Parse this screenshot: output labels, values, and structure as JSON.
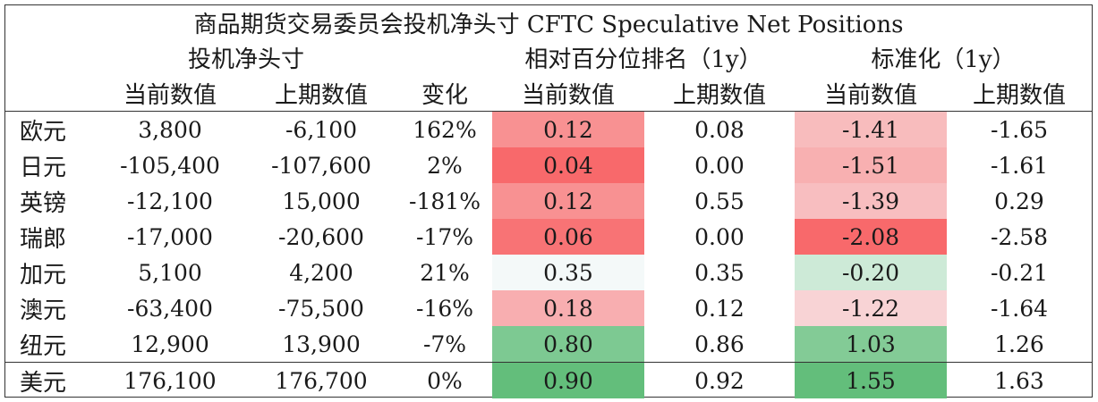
{
  "title": "商品期货交易委员会投机净头寸 CFTC Speculative Net Positions",
  "groups": {
    "net": "投机净头寸",
    "pct": "相对百分位排名（1y）",
    "std": "标准化（1y）"
  },
  "sub_headers": [
    "当前数值",
    "上期数值",
    "变化",
    "当前数值",
    "上期数值",
    "当前数值",
    "上期数值"
  ],
  "colors": {
    "heat_low": "#f8696b",
    "heat_high": "#63be7b",
    "heat_mid": "#f8fbfc"
  },
  "chart_data": {
    "type": "table",
    "title": "商品期货交易委员会投机净头寸 CFTC Speculative Net Positions",
    "columns": [
      "当前数值",
      "上期数值",
      "变化",
      "当前数值",
      "上期数值",
      "当前数值",
      "上期数值"
    ],
    "rows": [
      {
        "label": "欧元",
        "cur": "3,800",
        "prev": "-6,100",
        "chg": "162%",
        "pct_cur": "0.12",
        "pct_prev": "0.08",
        "std_cur": "-1.41",
        "std_prev": "-1.65",
        "pct_val": 0.12,
        "std_val": -1.41
      },
      {
        "label": "日元",
        "cur": "-105,400",
        "prev": "-107,600",
        "chg": "2%",
        "pct_cur": "0.04",
        "pct_prev": "0.00",
        "std_cur": "-1.51",
        "std_prev": "-1.61",
        "pct_val": 0.04,
        "std_val": -1.51
      },
      {
        "label": "英镑",
        "cur": "-12,100",
        "prev": "15,000",
        "chg": "-181%",
        "pct_cur": "0.12",
        "pct_prev": "0.55",
        "std_cur": "-1.39",
        "std_prev": "0.29",
        "pct_val": 0.12,
        "std_val": -1.39
      },
      {
        "label": "瑞郎",
        "cur": "-17,000",
        "prev": "-20,600",
        "chg": "-17%",
        "pct_cur": "0.06",
        "pct_prev": "0.00",
        "std_cur": "-2.08",
        "std_prev": "-2.58",
        "pct_val": 0.06,
        "std_val": -2.08
      },
      {
        "label": "加元",
        "cur": "5,100",
        "prev": "4,200",
        "chg": "21%",
        "pct_cur": "0.35",
        "pct_prev": "0.35",
        "std_cur": "-0.20",
        "std_prev": "-0.21",
        "pct_val": 0.35,
        "std_val": -0.2
      },
      {
        "label": "澳元",
        "cur": "-63,400",
        "prev": "-75,500",
        "chg": "-16%",
        "pct_cur": "0.18",
        "pct_prev": "0.12",
        "std_cur": "-1.22",
        "std_prev": "-1.64",
        "pct_val": 0.18,
        "std_val": -1.22
      },
      {
        "label": "纽元",
        "cur": "12,900",
        "prev": "13,900",
        "chg": "-7%",
        "pct_cur": "0.80",
        "pct_prev": "0.86",
        "std_cur": "1.03",
        "std_prev": "1.26",
        "pct_val": 0.8,
        "std_val": 1.03
      },
      {
        "label": "美元",
        "cur": "176,100",
        "prev": "176,700",
        "chg": "0%",
        "pct_cur": "0.90",
        "pct_prev": "0.92",
        "std_cur": "1.55",
        "std_prev": "1.63",
        "pct_val": 0.9,
        "std_val": 1.55
      }
    ]
  }
}
